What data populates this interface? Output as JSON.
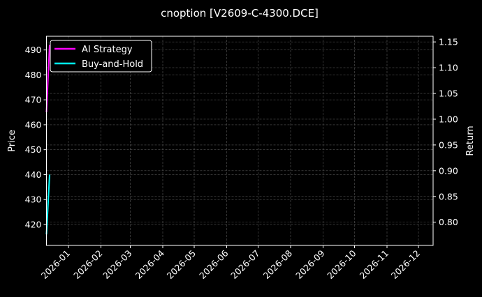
{
  "chart_data": {
    "type": "line",
    "title": "cnoption [V2609-C-4300.DCE]",
    "ylabel": "Price",
    "y2label": "Return",
    "ylim": [
      411.6,
      495.5
    ],
    "y2lim": [
      0.755,
      1.161
    ],
    "xlim": [
      "2025-12-11",
      "2026-12-15"
    ],
    "yticks": [
      420,
      430,
      440,
      450,
      460,
      470,
      480,
      490
    ],
    "y2ticks": [
      "0.80",
      "0.85",
      "0.90",
      "0.95",
      "1.00",
      "1.05",
      "1.10",
      "1.15"
    ],
    "xticks": [
      "2026-01",
      "2026-02",
      "2026-03",
      "2026-04",
      "2026-05",
      "2026-06",
      "2026-07",
      "2026-08",
      "2026-09",
      "2026-10",
      "2026-11",
      "2026-12"
    ],
    "grid": true,
    "legend": "top-left",
    "series": [
      {
        "name": "AI Strategy",
        "color": "#ff00ff",
        "x": [
          "2025-12-11",
          "2025-12-14"
        ],
        "values": [
          465,
          492
        ]
      },
      {
        "name": "Buy-and-Hold",
        "color": "#00ffff",
        "x": [
          "2025-12-11",
          "2025-12-14"
        ],
        "values": [
          416,
          440
        ]
      }
    ]
  }
}
